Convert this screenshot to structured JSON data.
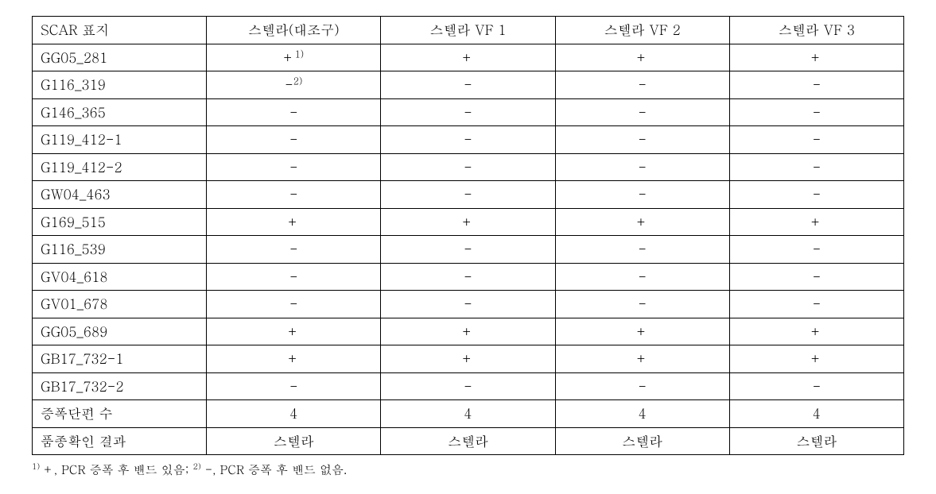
{
  "table": {
    "columns": [
      "SCAR 표지",
      "스텔라(대조구)",
      "스텔라 VF 1",
      "스텔라 VF 2",
      "스텔라 VF 3"
    ],
    "rows": [
      {
        "label": "GG05_281",
        "cells": [
          {
            "v": "+",
            "sup": "1)"
          },
          {
            "v": "+"
          },
          {
            "v": "+"
          },
          {
            "v": "+"
          }
        ]
      },
      {
        "label": "G116_319",
        "cells": [
          {
            "v": "-",
            "sup": "2)"
          },
          {
            "v": "-"
          },
          {
            "v": "-"
          },
          {
            "v": "-"
          }
        ]
      },
      {
        "label": "G146_365",
        "cells": [
          {
            "v": "-"
          },
          {
            "v": "-"
          },
          {
            "v": "-"
          },
          {
            "v": "-"
          }
        ]
      },
      {
        "label": "G119_412-1",
        "cells": [
          {
            "v": "-"
          },
          {
            "v": "-"
          },
          {
            "v": "-"
          },
          {
            "v": "-"
          }
        ]
      },
      {
        "label": "G119_412-2",
        "cells": [
          {
            "v": "-"
          },
          {
            "v": "-"
          },
          {
            "v": "-"
          },
          {
            "v": "-"
          }
        ]
      },
      {
        "label": "GW04_463",
        "cells": [
          {
            "v": "-"
          },
          {
            "v": "-"
          },
          {
            "v": "-"
          },
          {
            "v": "-"
          }
        ]
      },
      {
        "label": "G169_515",
        "cells": [
          {
            "v": "+"
          },
          {
            "v": "+"
          },
          {
            "v": "+"
          },
          {
            "v": "+"
          }
        ]
      },
      {
        "label": "G116_539",
        "cells": [
          {
            "v": "-"
          },
          {
            "v": "-"
          },
          {
            "v": "-"
          },
          {
            "v": "-"
          }
        ]
      },
      {
        "label": "GV04_618",
        "cells": [
          {
            "v": "-"
          },
          {
            "v": "-"
          },
          {
            "v": "-"
          },
          {
            "v": "-"
          }
        ]
      },
      {
        "label": "GV01_678",
        "cells": [
          {
            "v": "-"
          },
          {
            "v": "-"
          },
          {
            "v": "-"
          },
          {
            "v": "-"
          }
        ]
      },
      {
        "label": "GG05_689",
        "cells": [
          {
            "v": "+"
          },
          {
            "v": "+"
          },
          {
            "v": "+"
          },
          {
            "v": "+"
          }
        ]
      },
      {
        "label": "GB17_732-1",
        "cells": [
          {
            "v": "+"
          },
          {
            "v": "+"
          },
          {
            "v": "+"
          },
          {
            "v": "+"
          }
        ]
      },
      {
        "label": "GB17_732-2",
        "cells": [
          {
            "v": "-"
          },
          {
            "v": "-"
          },
          {
            "v": "-"
          },
          {
            "v": "-"
          }
        ]
      },
      {
        "label": "증폭단편 수",
        "cells": [
          {
            "v": "4"
          },
          {
            "v": "4"
          },
          {
            "v": "4"
          },
          {
            "v": "4"
          }
        ]
      },
      {
        "label": "품종확인 결과",
        "cells": [
          {
            "v": "스텔라"
          },
          {
            "v": "스텔라"
          },
          {
            "v": "스텔라"
          },
          {
            "v": "스텔라"
          }
        ]
      }
    ],
    "border_color": "#000000",
    "background_color": "#ffffff",
    "font_size": 17,
    "cell_padding": "4px 10px"
  },
  "footnote": {
    "parts": [
      {
        "sup": "1)",
        "text": " +, PCR 증폭 후 밴드 있음; "
      },
      {
        "sup": "2)",
        "text": " -, PCR 증폭 후 밴드 없음."
      }
    ],
    "font_size": 15
  }
}
